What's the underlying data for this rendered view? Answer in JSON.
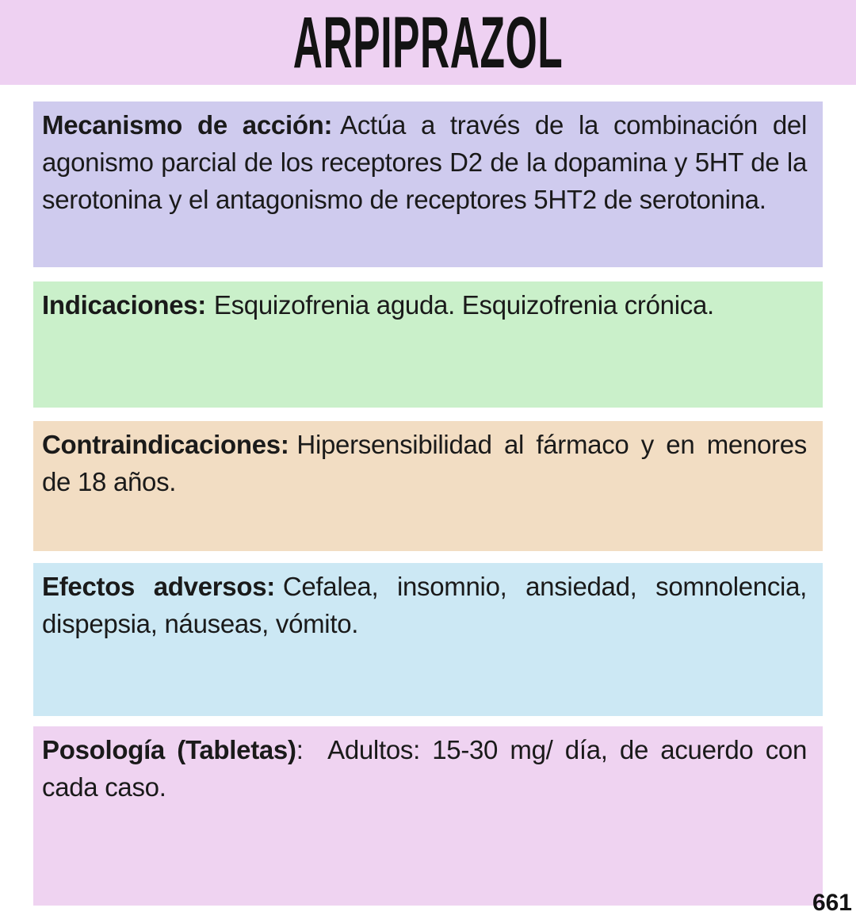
{
  "page": {
    "title": "ARPIPRAZOL",
    "page_number": "661"
  },
  "colors": {
    "header_bg": "#eed1f2",
    "mechanism_bg": "#cfcbee",
    "indications_bg": "#caf0ca",
    "contraindications_bg": "#f2ddc3",
    "adverse_bg": "#cce8f4",
    "dosage_bg": "#efd3f1",
    "text": "#1a1a1a"
  },
  "sections": [
    {
      "id": "mecanismo-de-accion",
      "label": "Mecanismo de acción:",
      "text": "Actúa a través de la combinación del agonismo parcial de los receptores D2 de la dopamina y 5HT de la serotonina y el antagonismo de receptores 5HT2 de serotonina."
    },
    {
      "id": "indicaciones",
      "label": "Indicaciones:",
      "text": "Esquizofrenia aguda. Esquizofrenia crónica."
    },
    {
      "id": "contraindicaciones",
      "label": "Contraindicaciones:",
      "text": "Hipersensibilidad al fármaco y en menores de 18 años."
    },
    {
      "id": "efectos-adversos",
      "label": "Efectos adversos:",
      "text": "Cefalea, insomnio, ansiedad, somnolencia, dispepsia, náuseas, vómito."
    },
    {
      "id": "posologia-tabletas",
      "label": "Posología (Tabletas)",
      "text": ":  Adultos: 15-30 mg/ día, de acuerdo con cada caso."
    }
  ]
}
